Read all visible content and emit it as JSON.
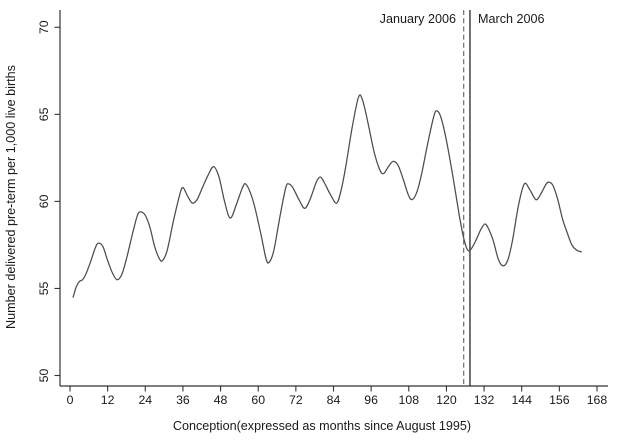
{
  "chart_data": {
    "type": "line",
    "title": "",
    "xlabel": "Conception(expressed as months since August 1995)",
    "ylabel": "Number delivered pre-term per 1,000 live births",
    "x_unit": "months since August 1995",
    "xlim": [
      -3.2,
      171.5
    ],
    "ylim": [
      49.4,
      70.9
    ],
    "xticks": [
      0,
      12,
      24,
      36,
      48,
      60,
      72,
      84,
      96,
      108,
      120,
      132,
      144,
      156,
      168
    ],
    "yticks": [
      50,
      55,
      60,
      65,
      70
    ],
    "grid": false,
    "legend": null,
    "line_color": "#4c4c4c",
    "axis_color": "#333333",
    "series": [
      {
        "name": "Number delivered pre-term per 1,000 live births",
        "points": [
          [
            1,
            54.5
          ],
          [
            2,
            55.1
          ],
          [
            3,
            55.4
          ],
          [
            4,
            55.5
          ],
          [
            5,
            55.8
          ],
          [
            6.5,
            56.5
          ],
          [
            8,
            57.3
          ],
          [
            9,
            57.6
          ],
          [
            10.5,
            57.4
          ],
          [
            12,
            56.6
          ],
          [
            13.5,
            55.9
          ],
          [
            15,
            55.5
          ],
          [
            16.5,
            55.8
          ],
          [
            18,
            56.7
          ],
          [
            20,
            58.2
          ],
          [
            21.5,
            59.2
          ],
          [
            22.5,
            59.4
          ],
          [
            24,
            59.2
          ],
          [
            25.5,
            58.5
          ],
          [
            27,
            57.4
          ],
          [
            28.5,
            56.7
          ],
          [
            29.5,
            56.6
          ],
          [
            31,
            57.2
          ],
          [
            33,
            58.9
          ],
          [
            35,
            60.4
          ],
          [
            36,
            60.8
          ],
          [
            37.5,
            60.3
          ],
          [
            39,
            59.9
          ],
          [
            40.5,
            60.1
          ],
          [
            42,
            60.7
          ],
          [
            44,
            61.5
          ],
          [
            45.8,
            62.0
          ],
          [
            47.5,
            61.4
          ],
          [
            49,
            60.2
          ],
          [
            50.5,
            59.2
          ],
          [
            51.5,
            59.1
          ],
          [
            53,
            59.8
          ],
          [
            55,
            60.8
          ],
          [
            56,
            61.0
          ],
          [
            57.5,
            60.5
          ],
          [
            59,
            59.6
          ],
          [
            61,
            58.0
          ],
          [
            62.5,
            56.7
          ],
          [
            63.5,
            56.5
          ],
          [
            65,
            57.2
          ],
          [
            67,
            59.2
          ],
          [
            68.8,
            60.8
          ],
          [
            69.8,
            61.0
          ],
          [
            71,
            60.8
          ],
          [
            73,
            60.1
          ],
          [
            74.8,
            59.6
          ],
          [
            76.5,
            60.1
          ],
          [
            78.5,
            61.1
          ],
          [
            79.8,
            61.4
          ],
          [
            81,
            61.1
          ],
          [
            83,
            60.4
          ],
          [
            85,
            59.9
          ],
          [
            86.5,
            60.7
          ],
          [
            88,
            62.1
          ],
          [
            90,
            64.3
          ],
          [
            92,
            66.0
          ],
          [
            93.3,
            65.8
          ],
          [
            95,
            64.5
          ],
          [
            97,
            62.8
          ],
          [
            98.8,
            61.8
          ],
          [
            100,
            61.6
          ],
          [
            101.5,
            62.0
          ],
          [
            103,
            62.3
          ],
          [
            104.5,
            62.1
          ],
          [
            106,
            61.4
          ],
          [
            107.8,
            60.4
          ],
          [
            109,
            60.1
          ],
          [
            110.5,
            60.5
          ],
          [
            112,
            61.5
          ],
          [
            114,
            63.3
          ],
          [
            116,
            64.9
          ],
          [
            117,
            65.2
          ],
          [
            118.3,
            64.8
          ],
          [
            120,
            63.5
          ],
          [
            122,
            61.5
          ],
          [
            124,
            59.3
          ],
          [
            125.5,
            57.9
          ],
          [
            126.8,
            57.2
          ],
          [
            128,
            57.3
          ],
          [
            129.5,
            57.8
          ],
          [
            131,
            58.4
          ],
          [
            132.3,
            58.7
          ],
          [
            133.5,
            58.4
          ],
          [
            135,
            57.7
          ],
          [
            136.5,
            56.7
          ],
          [
            138,
            56.3
          ],
          [
            139.5,
            56.6
          ],
          [
            141,
            57.7
          ],
          [
            143,
            59.8
          ],
          [
            144.8,
            61.0
          ],
          [
            146.5,
            60.7
          ],
          [
            148.5,
            60.1
          ],
          [
            150,
            60.4
          ],
          [
            151.8,
            61.0
          ],
          [
            152.8,
            61.1
          ],
          [
            154,
            60.9
          ],
          [
            155.5,
            60.1
          ],
          [
            157,
            59.0
          ],
          [
            158.5,
            58.2
          ],
          [
            160,
            57.5
          ],
          [
            161.5,
            57.2
          ],
          [
            163,
            57.1
          ]
        ]
      }
    ],
    "annotations": {
      "vlines": [
        {
          "x": 125.5,
          "style": "dashed",
          "label": "January 2006",
          "label_side": "left",
          "color": "#6f6f6f"
        },
        {
          "x": 127.5,
          "style": "solid",
          "label": "March 2006",
          "label_side": "right",
          "color": "#585858"
        }
      ]
    }
  }
}
